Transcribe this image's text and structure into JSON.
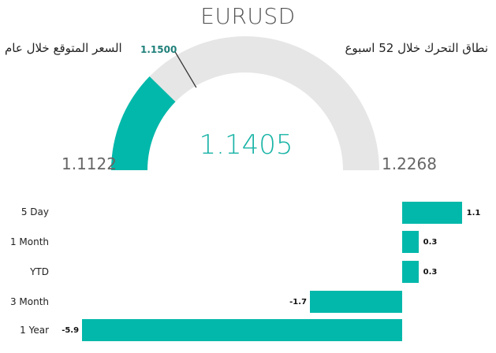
{
  "title": "EURUSD",
  "gauge": {
    "left_label": "السعر المتوقع خلال عام",
    "right_label": "نطاق التحرك خلال 52 اسبوع",
    "min_label": "1.1122",
    "max_label": "1.2268",
    "value_label": "1.1405",
    "target_label": "1.1500",
    "min": 1.1122,
    "max": 1.2268,
    "value": 1.1405,
    "target": 1.15,
    "fill_color": "#01b8aa",
    "track_color": "#e6e6e6"
  },
  "chart_data": {
    "type": "bar",
    "orientation": "horizontal",
    "categories": [
      "5 Day",
      "1 Month",
      "YTD",
      "3 Month",
      "1 Year"
    ],
    "values": [
      1.1,
      0.3,
      0.3,
      -1.7,
      -5.9
    ],
    "value_labels": [
      "1.1",
      "0.3",
      "0.3",
      "-1.7",
      "-5.9"
    ],
    "color": "#01b8aa"
  }
}
